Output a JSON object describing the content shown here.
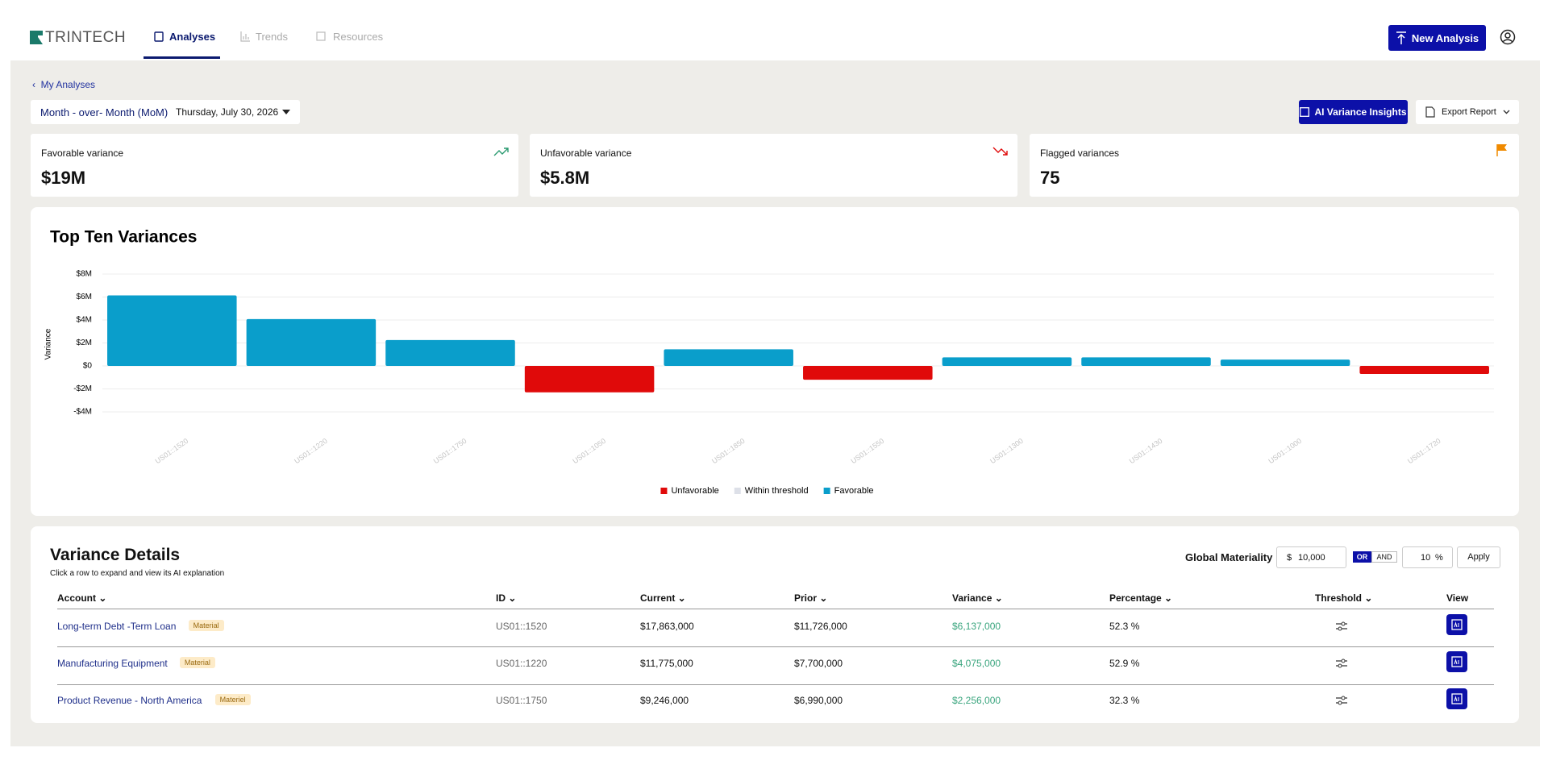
{
  "header": {
    "logo": "TRINTECH",
    "nav": [
      "Analyses",
      "Trends",
      "Resources"
    ],
    "new_analysis": "New Analysis"
  },
  "breadcrumb": "My Analyses",
  "filters": {
    "period": "Month - over- Month (MoM)",
    "date": "Thursday, July 30, 2026"
  },
  "actions": {
    "ai_insights": "AI Variance Insights",
    "export": "Export Report"
  },
  "kpis": [
    {
      "label": "Favorable variance",
      "value": "$19M"
    },
    {
      "label": "Unfavorable variance",
      "value": "$5.8M"
    },
    {
      "label": "Flagged variances",
      "value": "75"
    }
  ],
  "chart_data": {
    "type": "bar",
    "title": "Top Ten Variances",
    "y_label": "Variance",
    "categories": [
      "US01::1520",
      "US01::1220",
      "US01::1750",
      "US01::1050",
      "US01::1850",
      "US01::1550",
      "US01::1300",
      "US01::1430",
      "US01::1000",
      "US01::1720"
    ],
    "series": [
      {
        "name": "Unfavorable",
        "color": "#e00a0a",
        "values": [
          null,
          null,
          null,
          -2.3,
          null,
          -1.2,
          null,
          null,
          null,
          -0.7
        ]
      },
      {
        "name": "Within threshold",
        "color": "#dde0e8",
        "values": [
          null,
          null,
          null,
          null,
          null,
          null,
          null,
          null,
          null,
          null
        ]
      },
      {
        "name": "Favorable",
        "color": "#0a9ecb",
        "values": [
          6.137,
          4.075,
          2.256,
          null,
          1.45,
          null,
          0.75,
          0.75,
          0.55,
          null
        ]
      }
    ],
    "ylim": [
      -4,
      8
    ],
    "yticks": [
      {
        "value": 8,
        "label": "$8M"
      },
      {
        "value": 6,
        "label": "$6M"
      },
      {
        "value": 4,
        "label": "$4M"
      },
      {
        "value": 2,
        "label": "$2M"
      },
      {
        "value": 0,
        "label": "$0"
      },
      {
        "value": -2,
        "label": "-$2M"
      },
      {
        "value": -4,
        "label": "-$4M"
      }
    ],
    "grid": true,
    "legend": "bottom"
  },
  "details": {
    "title": "Variance Details",
    "subtitle": "Click a row to expand and view its AI explanation",
    "materiality": {
      "label": "Global Materiality",
      "currency": "$",
      "amount": "10,000",
      "or": "OR",
      "and": "AND",
      "percent": "10",
      "percent_sign": "%",
      "apply": "Apply"
    },
    "columns": [
      "Account",
      "ID",
      "Current",
      "Prior",
      "Variance",
      "Percentage",
      "Threshold",
      "View"
    ],
    "rows": [
      {
        "account": "Long-term Debt -Term Loan",
        "tag": "Material",
        "id": "US01::1520",
        "current": "$17,863,000",
        "prior": "$11,726,000",
        "variance": "$6,137,000",
        "percentage": "52.3 %"
      },
      {
        "account": "Manufacturing Equipment",
        "tag": "Material",
        "id": "US01::1220",
        "current": "$11,775,000",
        "prior": "$7,700,000",
        "variance": "$4,075,000",
        "percentage": "52.9 %"
      },
      {
        "account": "Product Revenue - North America",
        "tag": "Materiel",
        "id": "US01::1750",
        "current": "$9,246,000",
        "prior": "$6,990,000",
        "variance": "$2,256,000",
        "percentage": "32.3 %"
      }
    ]
  }
}
